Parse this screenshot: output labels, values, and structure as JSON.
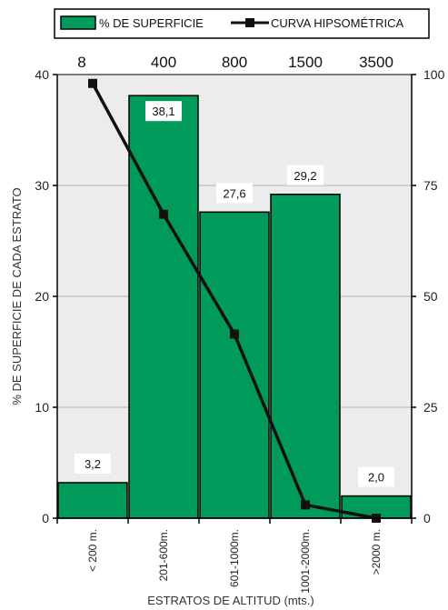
{
  "chart_data": {
    "type": "bar",
    "categories": [
      "< 200 m.",
      "201-600m.",
      "601-1000m.",
      "1001-2000m.",
      ">2000 m."
    ],
    "top_labels": [
      "8",
      "400",
      "800",
      "1500",
      "3500"
    ],
    "series": [
      {
        "name": "% DE SUPERFICIE",
        "type": "bar",
        "axis": "left",
        "values": [
          3.2,
          38.1,
          27.6,
          29.2,
          2.0
        ],
        "labels": [
          "3,2",
          "38,1",
          "27,6",
          "29,2",
          "2,0"
        ],
        "color": "#009a5a"
      },
      {
        "name": "CURVA HIPSOMÉTRICA",
        "type": "line",
        "axis": "right",
        "x_positions": [
          0.5,
          1.5,
          2.5,
          3.5,
          4.5
        ],
        "values": [
          98,
          68.5,
          41.5,
          3,
          0
        ],
        "color": "#111111"
      }
    ],
    "xlabel": "ESTRATOS DE ALTITUD (mts.)",
    "ylabel": "% DE SUPERFICIE DE CADA ESTRATO",
    "ylim": [
      0,
      40
    ],
    "yticks": [
      0,
      10,
      20,
      30,
      40
    ],
    "y2lim": [
      0,
      100
    ],
    "y2ticks": [
      0,
      25,
      50,
      75,
      100
    ],
    "grid": true,
    "legend_position": "top"
  }
}
